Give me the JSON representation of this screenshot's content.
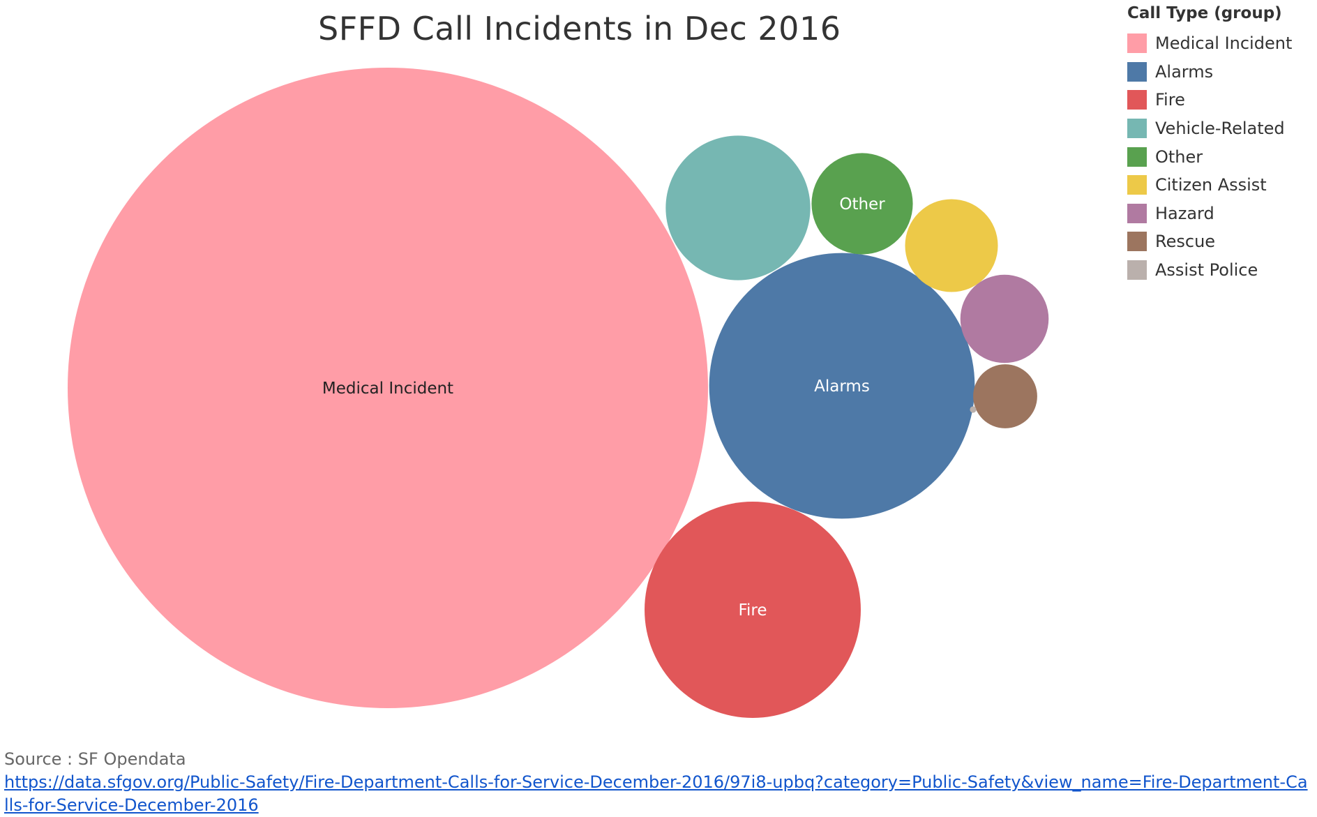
{
  "title": "SFFD Call Incidents in Dec 2016",
  "legend": {
    "title": "Call Type (group)",
    "items": [
      {
        "label": "Medical Incident",
        "color": "#ff9da7"
      },
      {
        "label": "Alarms",
        "color": "#4e79a7"
      },
      {
        "label": "Fire",
        "color": "#e15759"
      },
      {
        "label": "Vehicle-Related",
        "color": "#76b7b2"
      },
      {
        "label": "Other",
        "color": "#59a14f"
      },
      {
        "label": "Citizen Assist",
        "color": "#edc948"
      },
      {
        "label": "Hazard",
        "color": "#b07aa1"
      },
      {
        "label": "Rescue",
        "color": "#9c755f"
      },
      {
        "label": "Assist Police",
        "color": "#bab0ac"
      }
    ]
  },
  "source": {
    "label": "Source : SF Opendata",
    "url_text": "https://data.sfgov.org/Public-Safety/Fire-Department-Calls-for-Service-December-2016/97i8-upbq?category=Public-Safety&view_name=Fire-Department-Calls-for-Service-December-2016"
  },
  "chart_data": {
    "type": "packed-bubble",
    "title": "SFFD Call Incidents in Dec 2016",
    "legend_title": "Call Type (group)",
    "legend_position": "top-right",
    "size_measure": "relative number of calls (area share estimated from bubble size)",
    "series": [
      {
        "name": "Medical Incident",
        "value": 1000,
        "color": "#ff9da7",
        "label_shown": true
      },
      {
        "name": "Alarms",
        "value": 172,
        "color": "#4e79a7",
        "label_shown": true
      },
      {
        "name": "Fire",
        "value": 114,
        "color": "#e15759",
        "label_shown": true
      },
      {
        "name": "Vehicle-Related",
        "value": 51,
        "color": "#76b7b2",
        "label_shown": false
      },
      {
        "name": "Other",
        "value": 25,
        "color": "#59a14f",
        "label_shown": true
      },
      {
        "name": "Citizen Assist",
        "value": 21,
        "color": "#edc948",
        "label_shown": false
      },
      {
        "name": "Hazard",
        "value": 19,
        "color": "#b07aa1",
        "label_shown": false
      },
      {
        "name": "Rescue",
        "value": 10,
        "color": "#9c755f",
        "label_shown": false
      },
      {
        "name": "Assist Police",
        "value": 0.1,
        "color": "#bab0ac",
        "label_shown": false
      }
    ]
  }
}
